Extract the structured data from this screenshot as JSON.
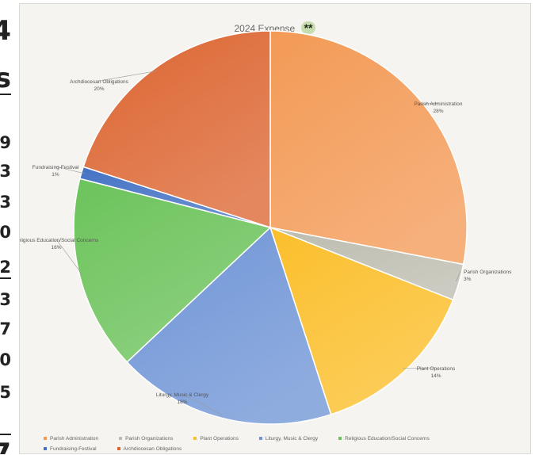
{
  "margin_fragments": {
    "top": "4",
    "second": "s",
    "digits": [
      "9",
      "3",
      "3",
      "0",
      "2",
      "3",
      "7",
      "0",
      "5"
    ],
    "bottom": "7"
  },
  "chart_data": {
    "type": "pie",
    "title": "2024 Expense",
    "title_mark": "**",
    "legend_position": "bottom",
    "slices": [
      {
        "label": "Parish Administration",
        "value": 28,
        "value_label": "28%",
        "color": "#f39a56"
      },
      {
        "label": "Parish Organizations",
        "value": 3,
        "value_label": "3%",
        "color": "#bcbcb0"
      },
      {
        "label": "Plant Operations",
        "value": 14,
        "value_label": "14%",
        "color": "#fbbf2c"
      },
      {
        "label": "Liturgy, Music & Clergy",
        "value": 18,
        "value_label": "18%",
        "color": "#6f95d6"
      },
      {
        "label": "Religious Education/Social Concerns",
        "value": 16,
        "value_label": "16%",
        "color": "#6cc35b"
      },
      {
        "label": "Fundraising-Festival",
        "value": 1,
        "value_label": "1%",
        "color": "#4472c4"
      },
      {
        "label": "Archdiocesan Obligations",
        "value": 20,
        "value_label": "20%",
        "color": "#dc6530"
      }
    ]
  }
}
